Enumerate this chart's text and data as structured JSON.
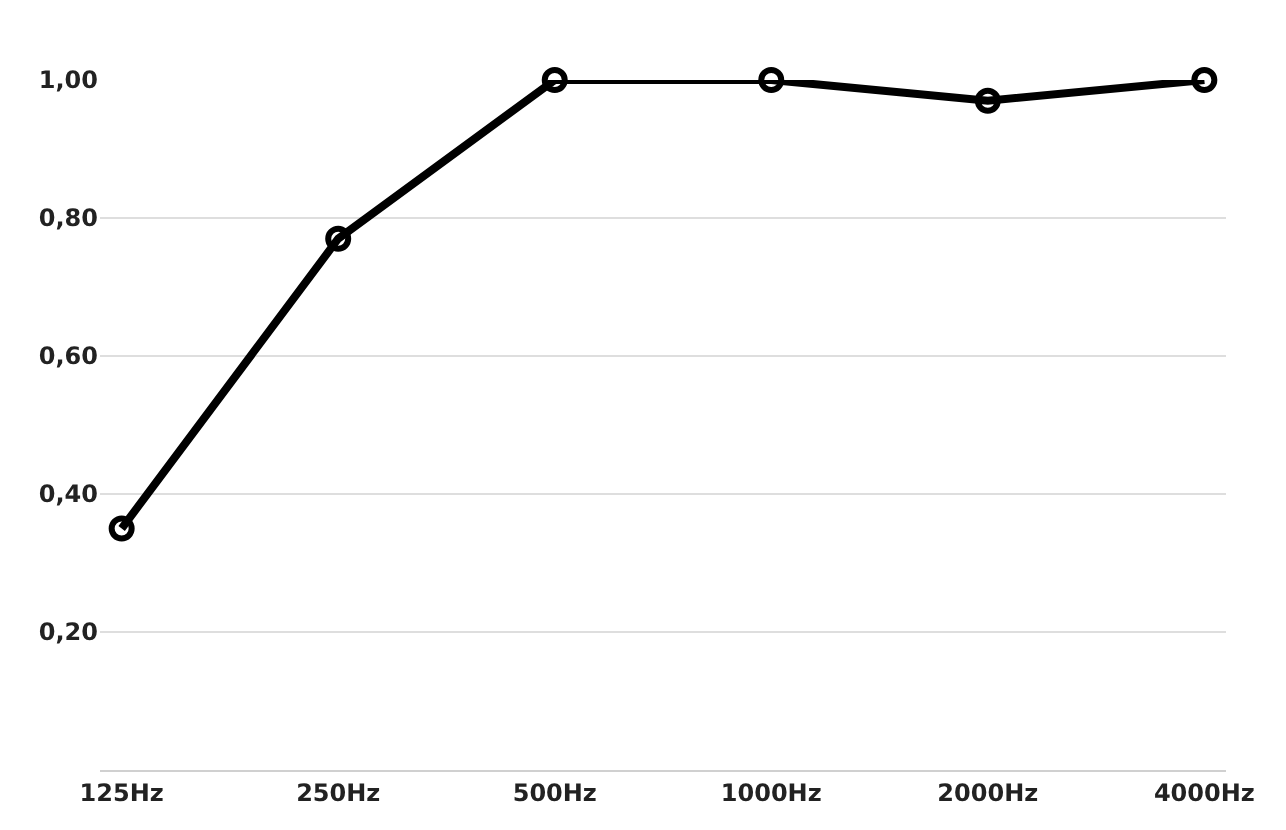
{
  "chart_data": {
    "type": "line",
    "categories": [
      "125Hz",
      "250Hz",
      "500Hz",
      "1000Hz",
      "2000Hz",
      "4000Hz"
    ],
    "series": [
      {
        "color": "#000000",
        "values": [
          0.35,
          0.77,
          1.0,
          1.0,
          0.97,
          1.0
        ]
      }
    ],
    "ylim": [
      0,
      1.0
    ],
    "yticks": [
      {
        "value": 0.2,
        "label": "0,20"
      },
      {
        "value": 0.4,
        "label": "0,40"
      },
      {
        "value": 0.6,
        "label": "0,60"
      },
      {
        "value": 0.8,
        "label": "0,80"
      },
      {
        "value": 1.0,
        "label": "1,00"
      }
    ],
    "grid": "y",
    "marker": "circle",
    "line_style": "solid"
  }
}
